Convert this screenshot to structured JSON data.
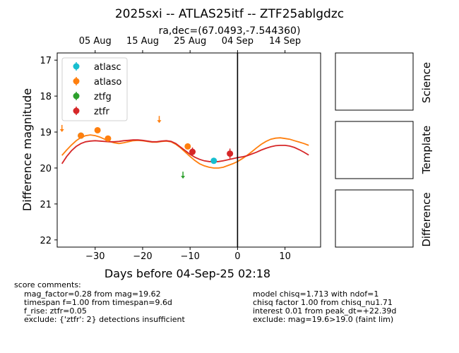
{
  "title": "2025sxi -- ATLAS25itf -- ZTF25ablgdzc",
  "subtitle": "ra,dec=(67.0493,-7.544360)",
  "side_panels": [
    {
      "label": "Science"
    },
    {
      "label": "Template"
    },
    {
      "label": "Difference"
    }
  ],
  "score_comments": {
    "heading": "score comments:",
    "lines": [
      "mag_factor=0.28 from mag=19.62",
      "timespan f=1.00 from timespan=9.6d",
      "f_rise: ztfr=0.05",
      "exclude: {'ztfr': 2} detections insufficient"
    ]
  },
  "model_comments": {
    "lines": [
      "model chisq=1.713 with ndof=1",
      "chisq factor 1.00 from chisq_nu1.71",
      "interest 0.01 from peak_dt=+22.39d",
      "exclude: mag=19.6>19.0 (faint lim)"
    ]
  },
  "chart_data": {
    "type": "scatter",
    "xlabel": "Days before 04-Sep-25 02:18",
    "ylabel": "Difference magnitude",
    "xlim": [
      -38,
      17.5
    ],
    "ylim": [
      22.2,
      16.8
    ],
    "y_inverted": true,
    "xticks": [
      -30,
      -20,
      -10,
      0,
      10
    ],
    "xtick_labels": [
      "−30",
      "−20",
      "−10",
      "0",
      "10"
    ],
    "yticks": [
      17,
      18,
      19,
      20,
      21,
      22
    ],
    "top_axis_ticks": [
      {
        "x": -30,
        "label": "05 Aug"
      },
      {
        "x": -20,
        "label": "15 Aug"
      },
      {
        "x": -10,
        "label": "25 Aug"
      },
      {
        "x": 0,
        "label": "04 Sep"
      },
      {
        "x": 10,
        "label": "14 Sep"
      }
    ],
    "vline_x": 0,
    "legend_position": "upper-left",
    "series": [
      {
        "name": "atlasc",
        "color": "#17becf",
        "points": [
          {
            "x": -33,
            "y": 19.1,
            "err": 0.08
          },
          {
            "x": -5,
            "y": 19.8,
            "err": 0.07
          }
        ],
        "upper_limits": []
      },
      {
        "name": "atlaso",
        "color": "#ff7f0e",
        "points": [
          {
            "x": -33,
            "y": 19.1,
            "err": 0.05
          },
          {
            "x": -29.5,
            "y": 18.95,
            "err": 0.05
          },
          {
            "x": -27.3,
            "y": 19.18,
            "err": 0.06
          },
          {
            "x": -10.5,
            "y": 19.4,
            "err": 0.07
          }
        ],
        "upper_limits": [
          {
            "x": -37,
            "y": 18.9
          },
          {
            "x": -16.5,
            "y": 18.65
          }
        ]
      },
      {
        "name": "ztfg",
        "color": "#2ca02c",
        "points": [],
        "upper_limits": [
          {
            "x": -11.5,
            "y": 20.2
          }
        ]
      },
      {
        "name": "ztfr",
        "color": "#d62728",
        "points": [
          {
            "x": -9.5,
            "y": 19.55,
            "err": 0.12
          },
          {
            "x": -1.6,
            "y": 19.6,
            "err": 0.14
          }
        ],
        "upper_limits": []
      }
    ],
    "model_curves": [
      {
        "color": "#ff7f0e",
        "x": [
          -37,
          -36,
          -35,
          -34,
          -33,
          -32,
          -31,
          -30,
          -29,
          -28,
          -27,
          -26,
          -25,
          -24,
          -23,
          -22,
          -21,
          -20,
          -19,
          -18,
          -17,
          -16,
          -15,
          -14,
          -13,
          -12,
          -11,
          -10,
          -9,
          -8,
          -7,
          -6,
          -5,
          -4,
          -3,
          -2,
          -1,
          0,
          1,
          2,
          3,
          4,
          5,
          6,
          7,
          8,
          9,
          10,
          11,
          12,
          13,
          14,
          15
        ],
        "y": [
          19.65,
          19.5,
          19.36,
          19.24,
          19.15,
          19.1,
          19.08,
          19.1,
          19.14,
          19.2,
          19.26,
          19.3,
          19.32,
          19.3,
          19.27,
          19.24,
          19.23,
          19.24,
          19.26,
          19.28,
          19.28,
          19.26,
          19.25,
          19.27,
          19.34,
          19.44,
          19.56,
          19.68,
          19.79,
          19.88,
          19.94,
          19.98,
          20.0,
          20.0,
          19.98,
          19.93,
          19.88,
          19.82,
          19.74,
          19.65,
          19.55,
          19.44,
          19.34,
          19.26,
          19.2,
          19.17,
          19.16,
          19.18,
          19.2,
          19.24,
          19.28,
          19.32,
          19.37
        ]
      },
      {
        "color": "#d62728",
        "x": [
          -37,
          -36,
          -35,
          -34,
          -33,
          -32,
          -31,
          -30,
          -29,
          -28,
          -27,
          -26,
          -25,
          -24,
          -23,
          -22,
          -21,
          -20,
          -19,
          -18,
          -17,
          -16,
          -15,
          -14,
          -13,
          -12,
          -11,
          -10,
          -9,
          -8,
          -7,
          -6,
          -5,
          -4,
          -3,
          -2,
          -1,
          0,
          1,
          2,
          3,
          4,
          5,
          6,
          7,
          8,
          9,
          10,
          11,
          12,
          13,
          14,
          15
        ],
        "y": [
          19.88,
          19.68,
          19.52,
          19.4,
          19.32,
          19.27,
          19.25,
          19.24,
          19.25,
          19.26,
          19.27,
          19.27,
          19.26,
          19.24,
          19.23,
          19.22,
          19.22,
          19.23,
          19.25,
          19.27,
          19.27,
          19.25,
          19.24,
          19.26,
          19.32,
          19.42,
          19.52,
          19.62,
          19.7,
          19.76,
          19.8,
          19.82,
          19.83,
          19.82,
          19.8,
          19.77,
          19.74,
          19.71,
          19.69,
          19.66,
          19.61,
          19.56,
          19.5,
          19.45,
          19.41,
          19.38,
          19.37,
          19.37,
          19.39,
          19.43,
          19.49,
          19.56,
          19.64
        ]
      }
    ]
  }
}
